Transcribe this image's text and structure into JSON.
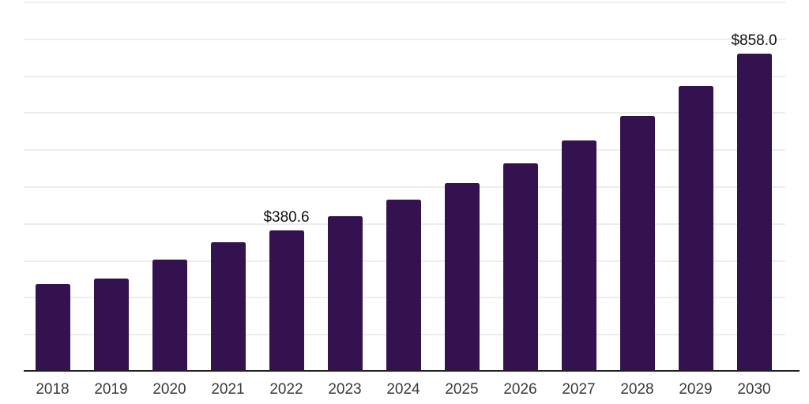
{
  "theme": {
    "background_color": "#ffffff",
    "bar_color": "#341250",
    "gridline_color": "#ededed",
    "axis_line_color": "#1f1f1f",
    "tick_label_color": "#3a3a3a",
    "annotation_color": "#111111"
  },
  "chart_data": {
    "type": "bar",
    "title": "",
    "xlabel": "",
    "ylabel": "",
    "categories": [
      "2018",
      "2019",
      "2020",
      "2021",
      "2022",
      "2023",
      "2024",
      "2025",
      "2026",
      "2027",
      "2028",
      "2029",
      "2030"
    ],
    "values": [
      235,
      250,
      301,
      348,
      380.6,
      419,
      464,
      509,
      562,
      624,
      690,
      771,
      858.0
    ],
    "ylim": [
      0,
      1000
    ],
    "y_gridline_step": 100,
    "y_tick_labels_visible": false,
    "grid": "horizontal",
    "legend": "none",
    "annotations": [
      {
        "category": "2022",
        "text": "$380.6"
      },
      {
        "category": "2030",
        "text": "$858.0"
      }
    ]
  }
}
